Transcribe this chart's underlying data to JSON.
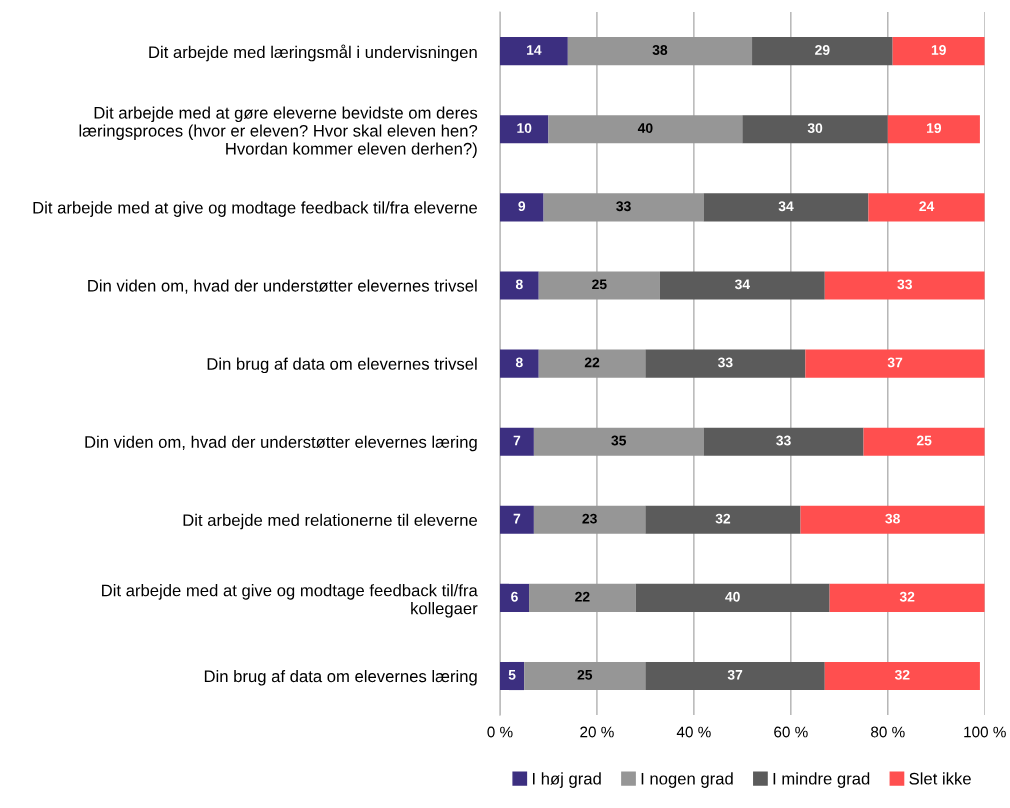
{
  "chart_data": {
    "type": "bar",
    "orientation": "horizontal",
    "stacked": true,
    "categories": [
      "Dit arbejde med læringsmål i undervisningen",
      "Dit arbejde med at gøre eleverne bevidste om deres læringsproces (hvor er eleven? Hvor skal eleven hen? Hvordan kommer eleven derhen?)",
      "Dit arbejde med at give og modtage feedback til/fra eleverne",
      "Din viden om, hvad der understøtter elevernes trivsel",
      "Din brug af data om elevernes trivsel",
      "Din viden om, hvad der understøtter elevernes læring",
      "Dit arbejde med relationerne til eleverne",
      "Dit arbejde med at give og modtage feedback til/fra kollegaer",
      "Din brug af data om elevernes læring"
    ],
    "series": [
      {
        "name": "I høj grad",
        "color": "#3c2f80",
        "values": [
          14,
          10,
          9,
          8,
          8,
          7,
          7,
          6,
          5
        ]
      },
      {
        "name": "I nogen grad",
        "color": "#969696",
        "values": [
          38,
          40,
          33,
          25,
          22,
          35,
          23,
          22,
          25
        ]
      },
      {
        "name": "I mindre grad",
        "color": "#5b5b5b",
        "values": [
          29,
          30,
          34,
          34,
          33,
          33,
          32,
          40,
          37
        ]
      },
      {
        "name": "Slet ikke",
        "color": "#ff4f4f",
        "values": [
          19,
          19,
          24,
          33,
          37,
          25,
          38,
          32,
          32
        ]
      }
    ],
    "xlim": [
      0,
      100
    ],
    "xticks": [
      {
        "value": 0,
        "label": "0 %"
      },
      {
        "value": 20,
        "label": "20 %"
      },
      {
        "value": 40,
        "label": "40 %"
      },
      {
        "value": 60,
        "label": "60 %"
      },
      {
        "value": 80,
        "label": "80 %"
      },
      {
        "value": 100,
        "label": "100 %"
      }
    ],
    "data_labels": true,
    "grid": "x",
    "legend": "bottom"
  }
}
